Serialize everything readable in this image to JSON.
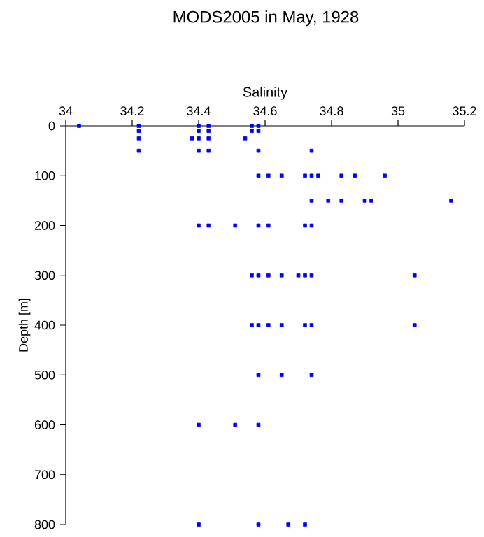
{
  "chart_data": {
    "type": "scatter",
    "title": "MODS2005 in May, 1928",
    "xlabel": "Salinity",
    "ylabel": "Depth [m]",
    "x": [
      34.04,
      34.22,
      34.4,
      34.43,
      34.56,
      34.58,
      34.22,
      34.4,
      34.43,
      34.56,
      34.58,
      34.22,
      34.38,
      34.4,
      34.43,
      34.54,
      34.22,
      34.4,
      34.43,
      34.58,
      34.74,
      34.58,
      34.61,
      34.65,
      34.72,
      34.74,
      34.76,
      34.83,
      34.87,
      34.96,
      34.74,
      34.79,
      34.83,
      34.9,
      34.92,
      35.16,
      34.4,
      34.43,
      34.51,
      34.58,
      34.61,
      34.72,
      34.74,
      34.56,
      34.58,
      34.61,
      34.65,
      34.7,
      34.72,
      34.74,
      35.05,
      34.56,
      34.58,
      34.61,
      34.65,
      34.72,
      34.74,
      35.05,
      34.58,
      34.65,
      34.74,
      34.4,
      34.51,
      34.58,
      34.4,
      34.58,
      34.67,
      34.72
    ],
    "values": [
      0,
      0,
      0,
      0,
      0,
      0,
      10,
      10,
      10,
      10,
      10,
      25,
      25,
      25,
      25,
      25,
      50,
      50,
      50,
      50,
      50,
      100,
      100,
      100,
      100,
      100,
      100,
      100,
      100,
      100,
      150,
      150,
      150,
      150,
      150,
      150,
      200,
      200,
      200,
      200,
      200,
      200,
      200,
      300,
      300,
      300,
      300,
      300,
      300,
      300,
      300,
      400,
      400,
      400,
      400,
      400,
      400,
      400,
      500,
      500,
      500,
      600,
      600,
      600,
      800,
      800,
      800,
      800
    ],
    "color": "#0000ff",
    "marker": "square",
    "xlim": [
      34,
      35.2
    ],
    "xticks": [
      34,
      34.2,
      34.4,
      34.6,
      34.8,
      35,
      35.2
    ],
    "ylim": [
      800,
      0
    ],
    "yticks": [
      0,
      100,
      200,
      300,
      400,
      500,
      600,
      700,
      800
    ]
  }
}
